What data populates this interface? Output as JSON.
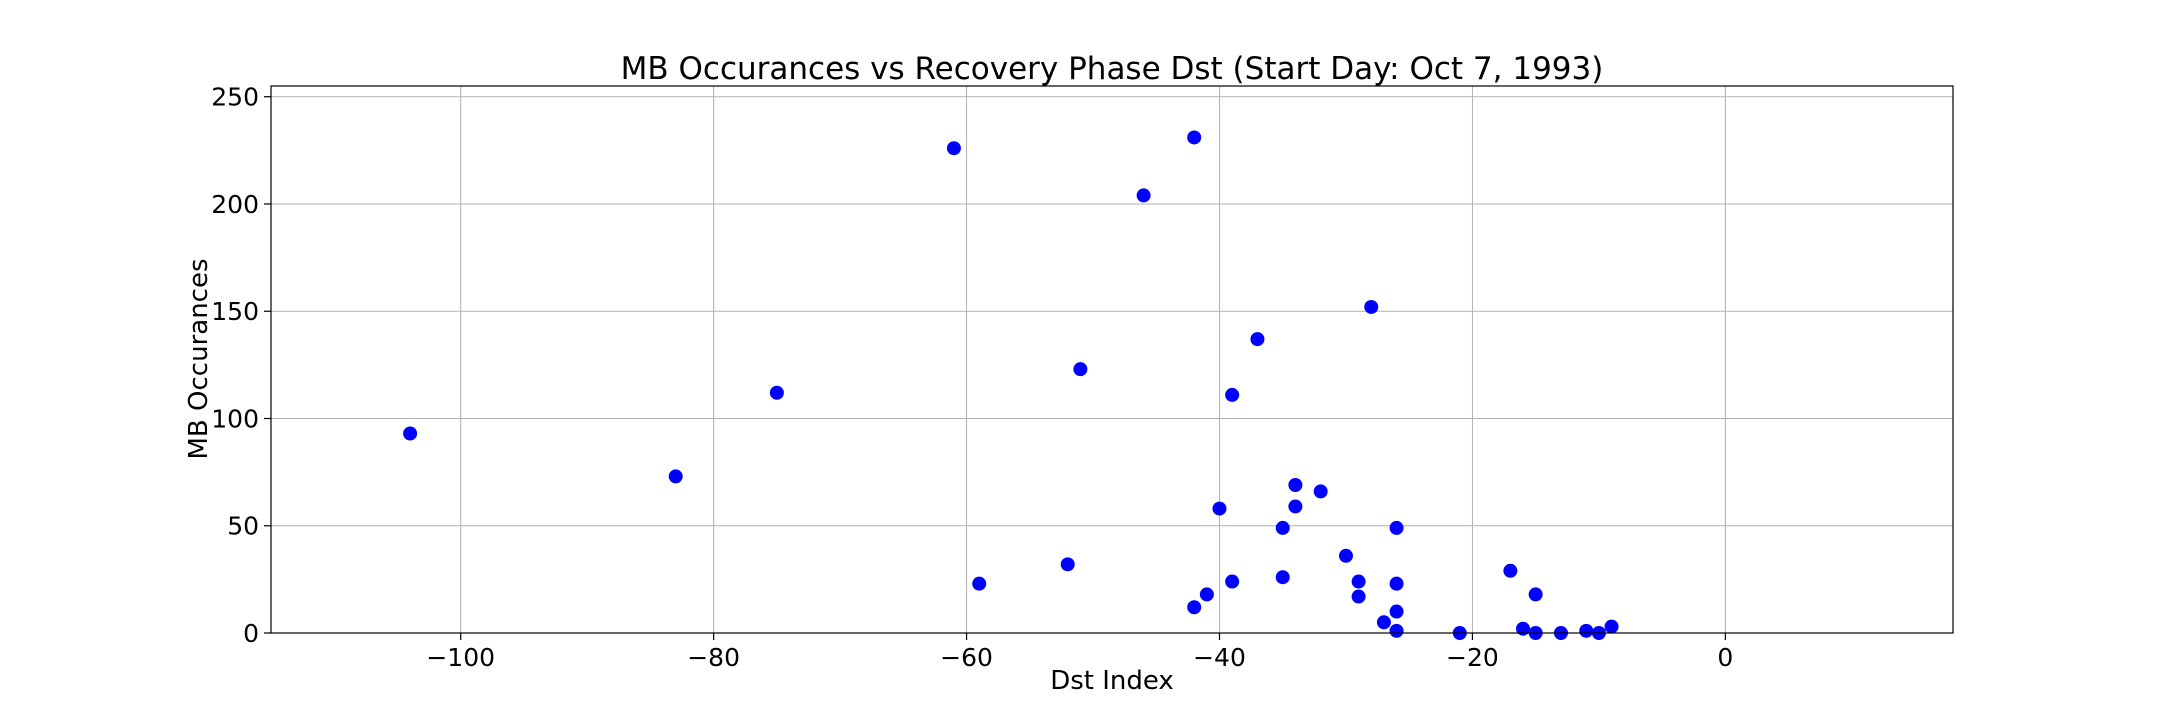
{
  "chart_data": {
    "type": "scatter",
    "title": "MB Occurances vs Recovery Phase Dst (Start Day: Oct 7, 1993)",
    "xlabel": "Dst Index",
    "ylabel": "MB Occurances",
    "xlim": [
      -115,
      18
    ],
    "ylim": [
      0,
      255
    ],
    "xticks": [
      -100,
      -80,
      -60,
      -40,
      -20,
      0
    ],
    "xtick_labels": [
      "−100",
      "−80",
      "−60",
      "−40",
      "−20",
      "0"
    ],
    "yticks": [
      0,
      50,
      100,
      150,
      200,
      250
    ],
    "ytick_labels": [
      "0",
      "50",
      "100",
      "150",
      "200",
      "250"
    ],
    "grid": true,
    "marker_color": "#0000ff",
    "series": [
      {
        "points": [
          [
            -104,
            93
          ],
          [
            -83,
            73
          ],
          [
            -75,
            112
          ],
          [
            -61,
            226
          ],
          [
            -59,
            23
          ],
          [
            -52,
            32
          ],
          [
            -51,
            123
          ],
          [
            -46,
            204
          ],
          [
            -42,
            231
          ],
          [
            -42,
            12
          ],
          [
            -41,
            18
          ],
          [
            -40,
            58
          ],
          [
            -39,
            111
          ],
          [
            -39,
            24
          ],
          [
            -37,
            137
          ],
          [
            -35,
            49
          ],
          [
            -35,
            26
          ],
          [
            -34,
            69
          ],
          [
            -34,
            59
          ],
          [
            -32,
            66
          ],
          [
            -30,
            36
          ],
          [
            -29,
            24
          ],
          [
            -29,
            17
          ],
          [
            -28,
            152
          ],
          [
            -27,
            5
          ],
          [
            -26,
            49
          ],
          [
            -26,
            23
          ],
          [
            -26,
            10
          ],
          [
            -26,
            1
          ],
          [
            -21,
            0
          ],
          [
            -17,
            29
          ],
          [
            -16,
            2
          ],
          [
            -15,
            18
          ],
          [
            -15,
            0
          ],
          [
            -13,
            0
          ],
          [
            -11,
            1
          ],
          [
            -10,
            0
          ],
          [
            -9,
            3
          ]
        ]
      }
    ]
  }
}
